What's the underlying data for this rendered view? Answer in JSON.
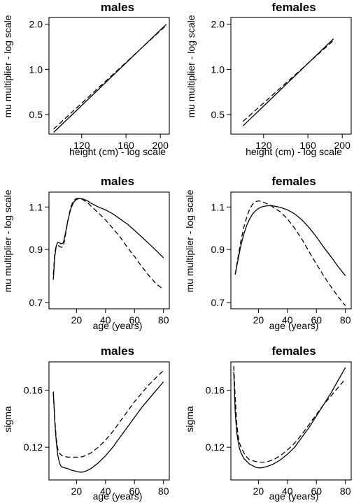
{
  "chart_data": [
    {
      "type": "line",
      "title": "males",
      "xlabel": "height (cm) - log scale",
      "ylabel": "mu multiplier - log scale",
      "x_scale": "log",
      "y_scale": "log",
      "xlim": [
        97,
        212
      ],
      "ylim": [
        0.37,
        2.22
      ],
      "x_ticks": [
        "120",
        "160",
        "200"
      ],
      "y_ticks": [
        "0.5",
        "1.0",
        "2.0"
      ],
      "series": [
        {
          "linestyle": "solid",
          "x": [
            100,
            208
          ],
          "y": [
            0.38,
            2.0
          ]
        },
        {
          "linestyle": "dashed",
          "x": [
            100,
            208
          ],
          "y": [
            0.4,
            1.97
          ]
        }
      ]
    },
    {
      "type": "line",
      "title": "females",
      "xlabel": "height (cm) - log scale",
      "ylabel": "mu multiplier - log scale",
      "x_scale": "log",
      "y_scale": "log",
      "xlim": [
        97,
        212
      ],
      "ylim": [
        0.37,
        2.22
      ],
      "x_ticks": [
        "120",
        "160",
        "200"
      ],
      "y_ticks": [
        "0.5",
        "1.0",
        "2.0"
      ],
      "series": [
        {
          "linestyle": "solid",
          "x": [
            105,
            189
          ],
          "y": [
            0.42,
            1.6
          ]
        },
        {
          "linestyle": "dashed",
          "x": [
            105,
            189
          ],
          "y": [
            0.45,
            1.56
          ]
        }
      ]
    },
    {
      "type": "line",
      "title": "males",
      "xlabel": "age (years)",
      "ylabel": "mu multiplier - log scale",
      "y_scale": "log",
      "xlim": [
        1,
        84
      ],
      "ylim": [
        0.68,
        1.18
      ],
      "x_ticks": [
        "20",
        "40",
        "60",
        "80"
      ],
      "y_ticks": [
        "0.7",
        "0.9",
        "1.1"
      ],
      "series": [
        {
          "linestyle": "solid",
          "x": [
            4,
            5,
            6,
            7,
            8,
            9,
            10,
            11,
            12,
            14,
            16,
            18,
            20,
            22,
            24,
            26,
            28,
            30,
            35,
            40,
            45,
            50,
            55,
            60,
            65,
            70,
            75,
            80
          ],
          "y": [
            0.78,
            0.87,
            0.915,
            0.93,
            0.93,
            0.925,
            0.925,
            0.93,
            0.96,
            1.03,
            1.09,
            1.125,
            1.14,
            1.145,
            1.143,
            1.138,
            1.13,
            1.12,
            1.1,
            1.085,
            1.065,
            1.04,
            1.015,
            0.985,
            0.955,
            0.925,
            0.895,
            0.865
          ]
        },
        {
          "linestyle": "dashed",
          "x": [
            4,
            5,
            6,
            7,
            8,
            9,
            10,
            11,
            12,
            14,
            16,
            18,
            20,
            22,
            24,
            26,
            28,
            30,
            35,
            40,
            45,
            50,
            55,
            60,
            65,
            70,
            75,
            80
          ],
          "y": [
            0.8,
            0.885,
            0.915,
            0.918,
            0.915,
            0.91,
            0.91,
            0.915,
            0.95,
            1.03,
            1.1,
            1.135,
            1.145,
            1.145,
            1.14,
            1.13,
            1.12,
            1.105,
            1.07,
            1.035,
            0.995,
            0.955,
            0.91,
            0.87,
            0.83,
            0.795,
            0.765,
            0.745
          ]
        }
      ]
    },
    {
      "type": "line",
      "title": "females",
      "xlabel": "age (years)",
      "ylabel": "mu multiplier - log scale",
      "y_scale": "log",
      "xlim": [
        1,
        84
      ],
      "ylim": [
        0.68,
        1.18
      ],
      "x_ticks": [
        "20",
        "40",
        "60",
        "80"
      ],
      "y_ticks": [
        "0.7",
        "0.9",
        "1.1"
      ],
      "series": [
        {
          "linestyle": "solid",
          "x": [
            4,
            6,
            8,
            10,
            12,
            14,
            16,
            18,
            20,
            22,
            25,
            28,
            30,
            35,
            40,
            45,
            50,
            55,
            60,
            65,
            70,
            75,
            80
          ],
          "y": [
            0.8,
            0.86,
            0.92,
            0.97,
            1.01,
            1.04,
            1.065,
            1.08,
            1.092,
            1.1,
            1.105,
            1.107,
            1.106,
            1.098,
            1.085,
            1.065,
            1.035,
            0.998,
            0.955,
            0.91,
            0.87,
            0.83,
            0.795
          ]
        },
        {
          "linestyle": "dashed",
          "x": [
            4,
            6,
            8,
            10,
            12,
            14,
            16,
            18,
            20,
            22,
            25,
            28,
            30,
            35,
            40,
            45,
            50,
            55,
            60,
            65,
            70,
            75,
            80
          ],
          "y": [
            0.8,
            0.87,
            0.94,
            1.0,
            1.05,
            1.09,
            1.115,
            1.128,
            1.132,
            1.13,
            1.12,
            1.11,
            1.1,
            1.075,
            1.04,
            0.995,
            0.945,
            0.89,
            0.84,
            0.795,
            0.755,
            0.72,
            0.69
          ]
        }
      ]
    },
    {
      "type": "line",
      "title": "males",
      "xlabel": "age (years)",
      "ylabel": "sigma",
      "xlim": [
        1,
        84
      ],
      "ylim": [
        0.097,
        0.18
      ],
      "x_ticks": [
        "20",
        "40",
        "60",
        "80"
      ],
      "y_ticks": [
        "0.12",
        "0.16"
      ],
      "series": [
        {
          "linestyle": "solid",
          "x": [
            4,
            5,
            6,
            7,
            8,
            9,
            10,
            12,
            14,
            16,
            18,
            20,
            22,
            24,
            26,
            30,
            35,
            40,
            45,
            50,
            55,
            60,
            65,
            70,
            75,
            80
          ],
          "y": [
            0.159,
            0.138,
            0.124,
            0.115,
            0.11,
            0.107,
            0.106,
            0.1055,
            0.105,
            0.104,
            0.1035,
            0.103,
            0.1025,
            0.1025,
            0.103,
            0.105,
            0.109,
            0.114,
            0.12,
            0.127,
            0.134,
            0.141,
            0.148,
            0.154,
            0.16,
            0.166
          ]
        },
        {
          "linestyle": "dashed",
          "x": [
            4,
            5,
            6,
            7,
            8,
            9,
            10,
            12,
            14,
            16,
            18,
            20,
            22,
            24,
            26,
            30,
            35,
            40,
            45,
            50,
            55,
            60,
            65,
            70,
            75,
            80
          ],
          "y": [
            0.159,
            0.14,
            0.126,
            0.119,
            0.116,
            0.115,
            0.114,
            0.1135,
            0.113,
            0.113,
            0.113,
            0.113,
            0.113,
            0.1133,
            0.114,
            0.116,
            0.12,
            0.125,
            0.131,
            0.138,
            0.145,
            0.152,
            0.158,
            0.164,
            0.169,
            0.174
          ]
        }
      ]
    },
    {
      "type": "line",
      "title": "females",
      "xlabel": "age (years)",
      "ylabel": "sigma",
      "xlim": [
        1,
        84
      ],
      "ylim": [
        0.097,
        0.18
      ],
      "x_ticks": [
        "20",
        "40",
        "60",
        "80"
      ],
      "y_ticks": [
        "0.12",
        "0.16"
      ],
      "series": [
        {
          "linestyle": "solid",
          "x": [
            3,
            4,
            5,
            6,
            7,
            8,
            10,
            12,
            14,
            16,
            18,
            20,
            22,
            24,
            26,
            30,
            35,
            40,
            45,
            50,
            55,
            60,
            65,
            70,
            75,
            80
          ],
          "y": [
            0.173,
            0.145,
            0.131,
            0.124,
            0.119,
            0.116,
            0.112,
            0.11,
            0.108,
            0.107,
            0.106,
            0.1055,
            0.1055,
            0.106,
            0.1065,
            0.108,
            0.111,
            0.115,
            0.12,
            0.127,
            0.134,
            0.142,
            0.15,
            0.158,
            0.167,
            0.176
          ]
        },
        {
          "linestyle": "dashed",
          "x": [
            3,
            4,
            5,
            6,
            7,
            8,
            10,
            12,
            14,
            16,
            18,
            20,
            22,
            24,
            26,
            30,
            35,
            40,
            45,
            50,
            55,
            60,
            65,
            70,
            75,
            80
          ],
          "y": [
            0.177,
            0.155,
            0.137,
            0.128,
            0.123,
            0.12,
            0.116,
            0.113,
            0.111,
            0.1105,
            0.11,
            0.1095,
            0.1095,
            0.1095,
            0.1098,
            0.111,
            0.114,
            0.118,
            0.123,
            0.129,
            0.136,
            0.143,
            0.15,
            0.156,
            0.162,
            0.168
          ]
        }
      ]
    }
  ]
}
